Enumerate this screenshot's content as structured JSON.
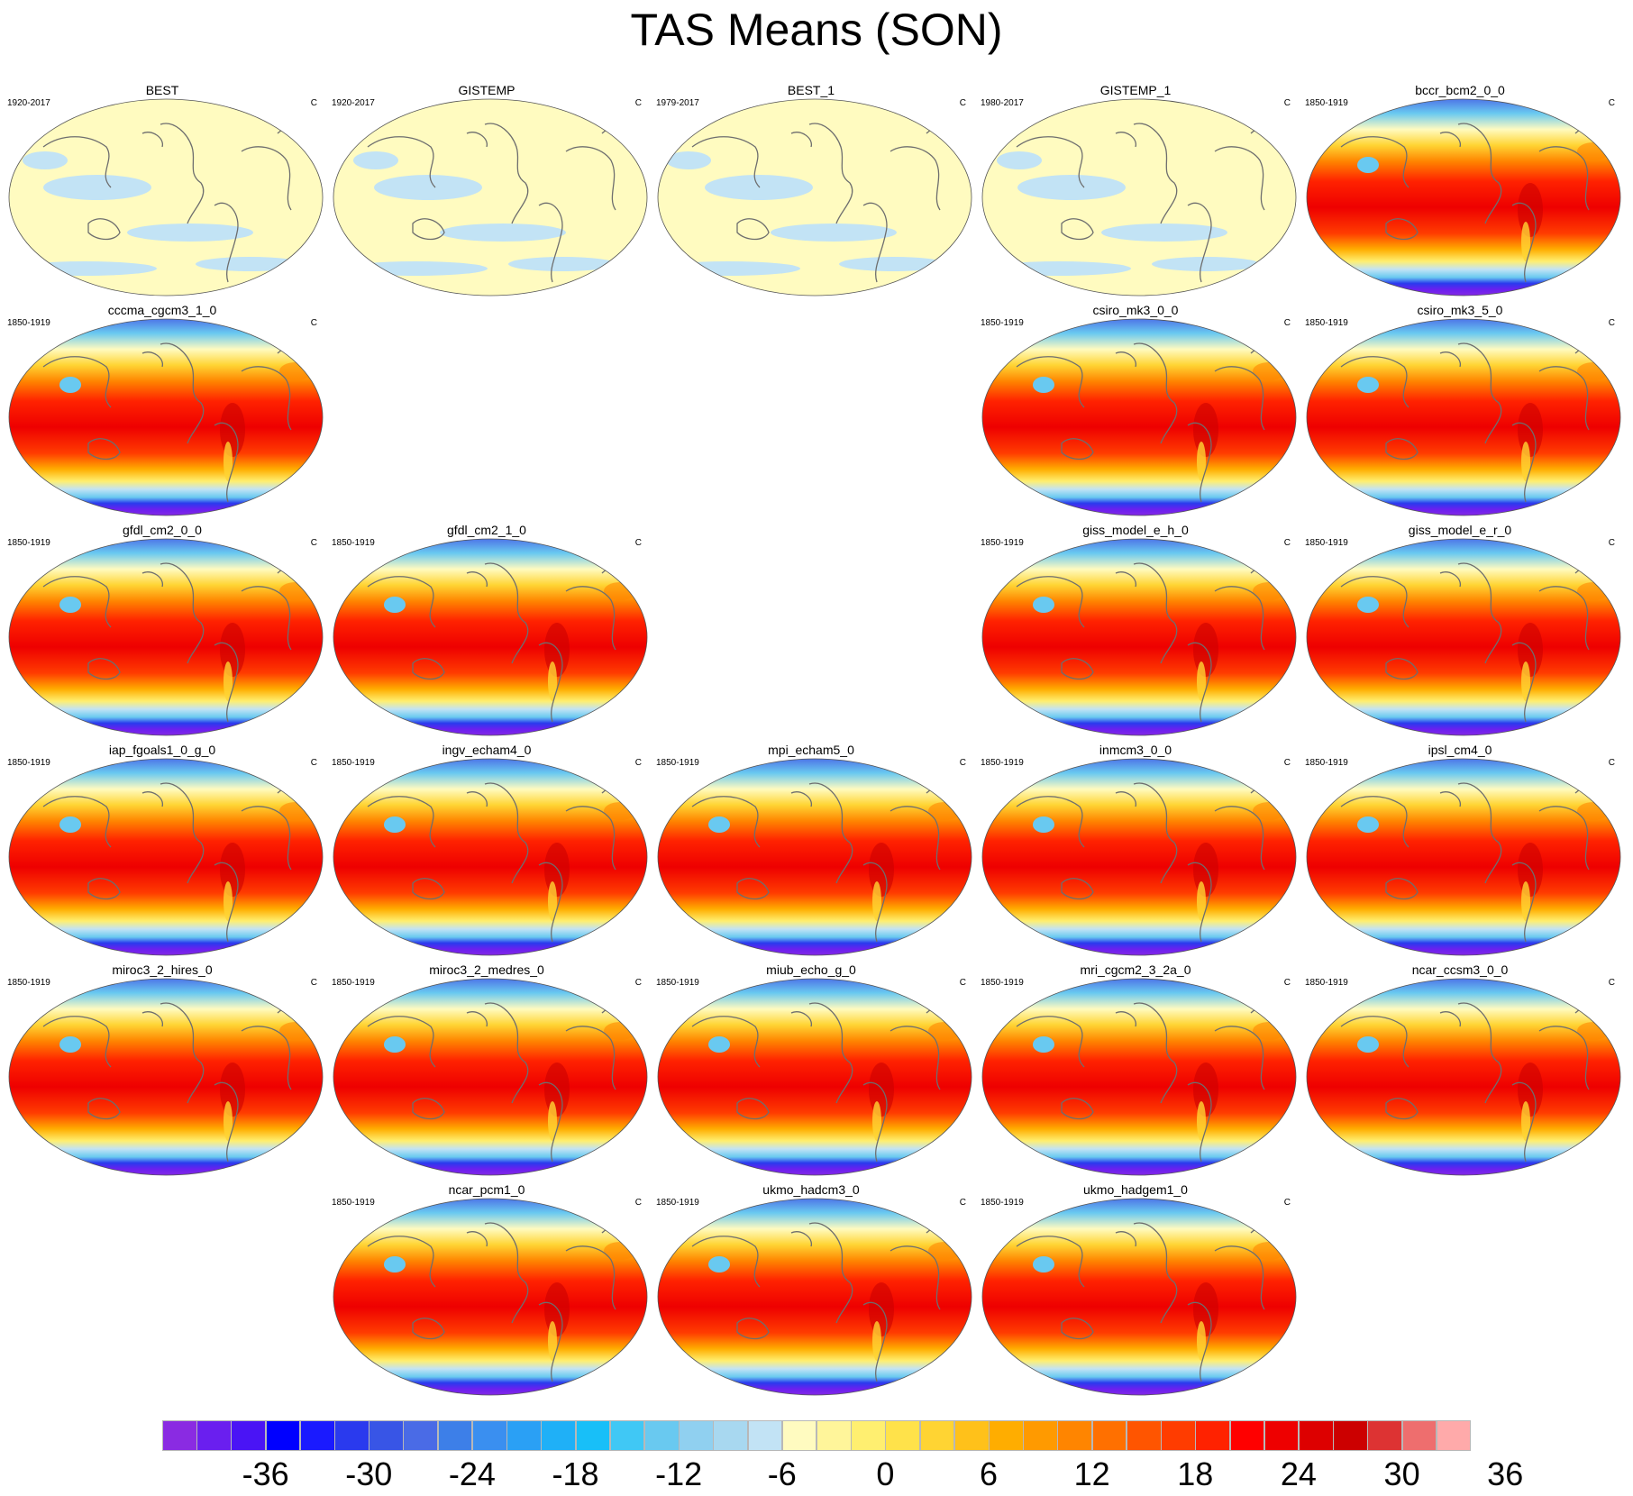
{
  "title": "TAS Means (SON)",
  "panels": [
    {
      "name": "BEST",
      "period": "1920-2017",
      "unit": "C",
      "row": 0,
      "col": 0,
      "kind": "obs"
    },
    {
      "name": "GISTEMP",
      "period": "1920-2017",
      "unit": "C",
      "row": 0,
      "col": 1,
      "kind": "obs"
    },
    {
      "name": "BEST_1",
      "period": "1979-2017",
      "unit": "C",
      "row": 0,
      "col": 2,
      "kind": "obs"
    },
    {
      "name": "GISTEMP_1",
      "period": "1980-2017",
      "unit": "C",
      "row": 0,
      "col": 3,
      "kind": "obs"
    },
    {
      "name": "bccr_bcm2_0_0",
      "period": "1850-1919",
      "unit": "C",
      "row": 0,
      "col": 4,
      "kind": "model"
    },
    {
      "name": "cccma_cgcm3_1_0",
      "period": "1850-1919",
      "unit": "C",
      "row": 1,
      "col": 0,
      "kind": "model"
    },
    {
      "name": "csiro_mk3_0_0",
      "period": "1850-1919",
      "unit": "C",
      "row": 1,
      "col": 3,
      "kind": "model"
    },
    {
      "name": "csiro_mk3_5_0",
      "period": "1850-1919",
      "unit": "C",
      "row": 1,
      "col": 4,
      "kind": "model"
    },
    {
      "name": "gfdl_cm2_0_0",
      "period": "1850-1919",
      "unit": "C",
      "row": 2,
      "col": 0,
      "kind": "model"
    },
    {
      "name": "gfdl_cm2_1_0",
      "period": "1850-1919",
      "unit": "C",
      "row": 2,
      "col": 1,
      "kind": "model"
    },
    {
      "name": "giss_model_e_h_0",
      "period": "1850-1919",
      "unit": "C",
      "row": 2,
      "col": 3,
      "kind": "model"
    },
    {
      "name": "giss_model_e_r_0",
      "period": "1850-1919",
      "unit": "C",
      "row": 2,
      "col": 4,
      "kind": "model"
    },
    {
      "name": "iap_fgoals1_0_g_0",
      "period": "1850-1919",
      "unit": "C",
      "row": 3,
      "col": 0,
      "kind": "model"
    },
    {
      "name": "ingv_echam4_0",
      "period": "1850-1919",
      "unit": "C",
      "row": 3,
      "col": 1,
      "kind": "model"
    },
    {
      "name": "mpi_echam5_0",
      "period": "1850-1919",
      "unit": "C",
      "row": 3,
      "col": 2,
      "kind": "model"
    },
    {
      "name": "inmcm3_0_0",
      "period": "1850-1919",
      "unit": "C",
      "row": 3,
      "col": 3,
      "kind": "model"
    },
    {
      "name": "ipsl_cm4_0",
      "period": "1850-1919",
      "unit": "C",
      "row": 3,
      "col": 4,
      "kind": "model"
    },
    {
      "name": "miroc3_2_hires_0",
      "period": "1850-1919",
      "unit": "C",
      "row": 4,
      "col": 0,
      "kind": "model"
    },
    {
      "name": "miroc3_2_medres_0",
      "period": "1850-1919",
      "unit": "C",
      "row": 4,
      "col": 1,
      "kind": "model"
    },
    {
      "name": "miub_echo_g_0",
      "period": "1850-1919",
      "unit": "C",
      "row": 4,
      "col": 2,
      "kind": "model"
    },
    {
      "name": "mri_cgcm2_3_2a_0",
      "period": "1850-1919",
      "unit": "C",
      "row": 4,
      "col": 3,
      "kind": "model"
    },
    {
      "name": "ncar_ccsm3_0_0",
      "period": "1850-1919",
      "unit": "C",
      "row": 4,
      "col": 4,
      "kind": "model"
    },
    {
      "name": "ncar_pcm1_0",
      "period": "1850-1919",
      "unit": "C",
      "row": 5,
      "col": 1,
      "kind": "model"
    },
    {
      "name": "ukmo_hadcm3_0",
      "period": "1850-1919",
      "unit": "C",
      "row": 5,
      "col": 2,
      "kind": "model"
    },
    {
      "name": "ukmo_hadgem1_0",
      "period": "1850-1919",
      "unit": "C",
      "row": 5,
      "col": 3,
      "kind": "model"
    }
  ],
  "colorbar": {
    "colors": [
      "#8a2be2",
      "#6a1fef",
      "#4a14f5",
      "#0000ff",
      "#1a1aff",
      "#2a3aee",
      "#3855e6",
      "#4a6be6",
      "#3d7fe8",
      "#3a8ff0",
      "#2aa0f5",
      "#1fb0f7",
      "#18bff8",
      "#40c8f5",
      "#69c9f0",
      "#90d0f0",
      "#a8d8f0",
      "#c2e3f5",
      "#fffbc0",
      "#fff59a",
      "#ffef70",
      "#ffe24a",
      "#ffd433",
      "#ffc11a",
      "#ffad00",
      "#ff9a00",
      "#ff8500",
      "#ff7000",
      "#ff5500",
      "#ff3c00",
      "#ff2200",
      "#ff0000",
      "#ee0000",
      "#dd0000",
      "#cc0000",
      "#dd3333",
      "#ee6e6e",
      "#ffaaaa"
    ],
    "tick_labels": [
      "-36",
      "-30",
      "-24",
      "-18",
      "-12",
      "-6",
      "0",
      "6",
      "12",
      "18",
      "24",
      "30",
      "36"
    ],
    "tick_box_index": [
      3,
      6,
      9,
      12,
      15,
      18,
      21,
      24,
      27,
      30,
      33,
      36,
      39
    ]
  }
}
